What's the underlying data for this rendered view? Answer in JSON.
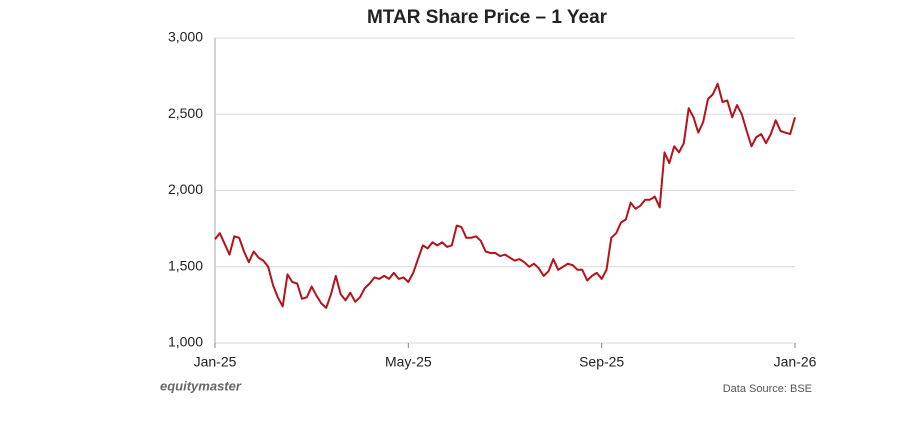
{
  "chart_data": {
    "type": "line",
    "title": "MTAR Share Price – 1 Year",
    "categories": [
      "Jan-25",
      null,
      null,
      null,
      null,
      null,
      null,
      null,
      null,
      null,
      null,
      null,
      null,
      null,
      null,
      null,
      null,
      null,
      null,
      null,
      null,
      null,
      null,
      null,
      null,
      null,
      null,
      null,
      null,
      null,
      null,
      null,
      null,
      null,
      null,
      null,
      null,
      null,
      null,
      null,
      "May-25",
      null,
      null,
      null,
      null,
      null,
      null,
      null,
      null,
      null,
      null,
      null,
      null,
      null,
      null,
      null,
      null,
      null,
      null,
      null,
      null,
      null,
      null,
      null,
      null,
      null,
      null,
      null,
      null,
      null,
      null,
      null,
      null,
      null,
      null,
      null,
      null,
      null,
      null,
      null,
      "Sep-25",
      null,
      null,
      null,
      null,
      null,
      null,
      null,
      null,
      null,
      null,
      null,
      null,
      null,
      null,
      null,
      null,
      null,
      null,
      null,
      null,
      null,
      null,
      null,
      null,
      null,
      null,
      null,
      null,
      null,
      null,
      null,
      null,
      null,
      null,
      null,
      null,
      null,
      null,
      null,
      "Jan-26"
    ],
    "series": [
      {
        "name": "MTAR",
        "color": "#b5121b",
        "values": [
          1680,
          1720,
          1650,
          1580,
          1700,
          1690,
          1600,
          1530,
          1600,
          1560,
          1540,
          1500,
          1380,
          1300,
          1240,
          1450,
          1400,
          1390,
          1290,
          1300,
          1370,
          1310,
          1260,
          1230,
          1320,
          1440,
          1320,
          1280,
          1330,
          1270,
          1300,
          1360,
          1390,
          1430,
          1420,
          1440,
          1420,
          1460,
          1420,
          1430,
          1400,
          1460,
          1550,
          1640,
          1620,
          1660,
          1640,
          1660,
          1630,
          1640,
          1770,
          1760,
          1690,
          1690,
          1700,
          1670,
          1600,
          1590,
          1590,
          1570,
          1580,
          1560,
          1540,
          1550,
          1530,
          1500,
          1520,
          1490,
          1440,
          1470,
          1550,
          1480,
          1500,
          1520,
          1510,
          1480,
          1480,
          1410,
          1440,
          1460,
          1420,
          1480,
          1690,
          1720,
          1790,
          1810,
          1920,
          1880,
          1900,
          1940,
          1940,
          1960,
          1890,
          2250,
          2180,
          2290,
          2250,
          2310,
          2540,
          2480,
          2380,
          2450,
          2600,
          2630,
          2700,
          2580,
          2590,
          2480,
          2560,
          2500,
          2390,
          2290,
          2350,
          2370,
          2310,
          2370,
          2460,
          2390,
          2380,
          2370,
          2480
        ]
      }
    ],
    "ylim": [
      1000,
      3000
    ],
    "yticks": [
      {
        "value": 1000,
        "label": "1,000"
      },
      {
        "value": 1500,
        "label": "1,500"
      },
      {
        "value": 2000,
        "label": "2,000"
      },
      {
        "value": 2500,
        "label": "2,500"
      },
      {
        "value": 3000,
        "label": "3,000"
      }
    ],
    "grid": true,
    "watermark": "equitymaster",
    "source": "Data Source: BSE"
  }
}
